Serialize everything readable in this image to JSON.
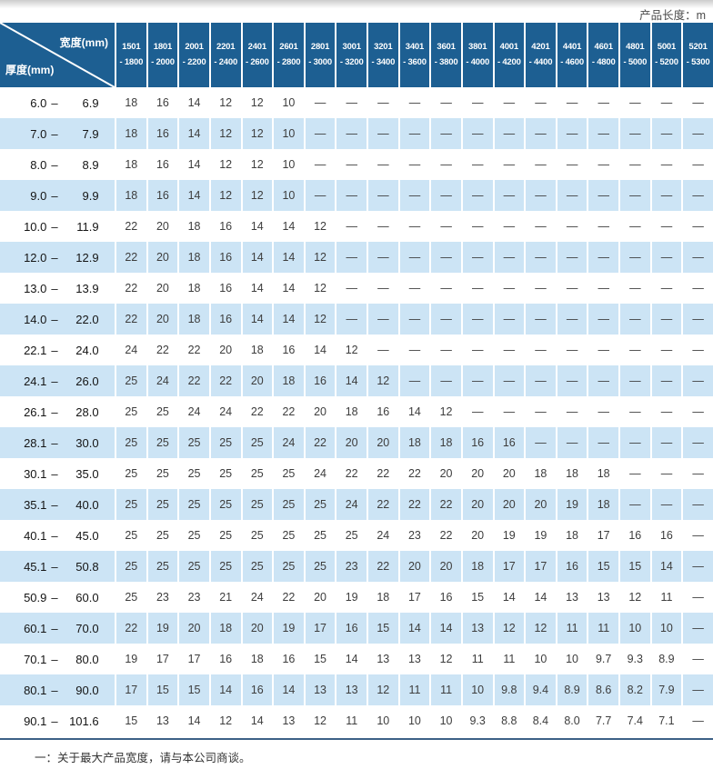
{
  "unit_note": "产品长度：m",
  "colors": {
    "header_blue": "#1d5f92",
    "row_alt_blue": "#cce4f5",
    "rule_color": "#3d6186"
  },
  "table": {
    "corner": {
      "width_label": "宽度(mm)",
      "thickness_label": "厚度(mm)"
    },
    "width_columns": [
      [
        "1501",
        "- 1800"
      ],
      [
        "1801",
        "- 2000"
      ],
      [
        "2001",
        "- 2200"
      ],
      [
        "2201",
        "- 2400"
      ],
      [
        "2401",
        "- 2600"
      ],
      [
        "2601",
        "- 2800"
      ],
      [
        "2801",
        "- 3000"
      ],
      [
        "3001",
        "- 3200"
      ],
      [
        "3201",
        "- 3400"
      ],
      [
        "3401",
        "- 3600"
      ],
      [
        "3601",
        "- 3800"
      ],
      [
        "3801",
        "- 4000"
      ],
      [
        "4001",
        "- 4200"
      ],
      [
        "4201",
        "- 4400"
      ],
      [
        "4401",
        "- 4600"
      ],
      [
        "4601",
        "- 4800"
      ],
      [
        "4801",
        "- 5000"
      ],
      [
        "5001",
        "- 5200"
      ],
      [
        "5201",
        "- 5300"
      ]
    ],
    "rows": [
      {
        "range": [
          "6.0",
          "6.9"
        ],
        "values": [
          "18",
          "16",
          "14",
          "12",
          "12",
          "10",
          "—",
          "—",
          "—",
          "—",
          "—",
          "—",
          "—",
          "—",
          "—",
          "—",
          "—",
          "—",
          "—"
        ]
      },
      {
        "range": [
          "7.0",
          "7.9"
        ],
        "values": [
          "18",
          "16",
          "14",
          "12",
          "12",
          "10",
          "—",
          "—",
          "—",
          "—",
          "—",
          "—",
          "—",
          "—",
          "—",
          "—",
          "—",
          "—",
          "—"
        ]
      },
      {
        "range": [
          "8.0",
          "8.9"
        ],
        "values": [
          "18",
          "16",
          "14",
          "12",
          "12",
          "10",
          "—",
          "—",
          "—",
          "—",
          "—",
          "—",
          "—",
          "—",
          "—",
          "—",
          "—",
          "—",
          "—"
        ]
      },
      {
        "range": [
          "9.0",
          "9.9"
        ],
        "values": [
          "18",
          "16",
          "14",
          "12",
          "12",
          "10",
          "—",
          "—",
          "—",
          "—",
          "—",
          "—",
          "—",
          "—",
          "—",
          "—",
          "—",
          "—",
          "—"
        ]
      },
      {
        "range": [
          "10.0",
          "11.9"
        ],
        "values": [
          "22",
          "20",
          "18",
          "16",
          "14",
          "14",
          "12",
          "—",
          "—",
          "—",
          "—",
          "—",
          "—",
          "—",
          "—",
          "—",
          "—",
          "—",
          "—"
        ]
      },
      {
        "range": [
          "12.0",
          "12.9"
        ],
        "values": [
          "22",
          "20",
          "18",
          "16",
          "14",
          "14",
          "12",
          "—",
          "—",
          "—",
          "—",
          "—",
          "—",
          "—",
          "—",
          "—",
          "—",
          "—",
          "—"
        ]
      },
      {
        "range": [
          "13.0",
          "13.9"
        ],
        "values": [
          "22",
          "20",
          "18",
          "16",
          "14",
          "14",
          "12",
          "—",
          "—",
          "—",
          "—",
          "—",
          "—",
          "—",
          "—",
          "—",
          "—",
          "—",
          "—"
        ]
      },
      {
        "range": [
          "14.0",
          "22.0"
        ],
        "values": [
          "22",
          "20",
          "18",
          "16",
          "14",
          "14",
          "12",
          "—",
          "—",
          "—",
          "—",
          "—",
          "—",
          "—",
          "—",
          "—",
          "—",
          "—",
          "—"
        ]
      },
      {
        "range": [
          "22.1",
          "24.0"
        ],
        "values": [
          "24",
          "22",
          "22",
          "20",
          "18",
          "16",
          "14",
          "12",
          "—",
          "—",
          "—",
          "—",
          "—",
          "—",
          "—",
          "—",
          "—",
          "—",
          "—"
        ]
      },
      {
        "range": [
          "24.1",
          "26.0"
        ],
        "values": [
          "25",
          "24",
          "22",
          "22",
          "20",
          "18",
          "16",
          "14",
          "12",
          "—",
          "—",
          "—",
          "—",
          "—",
          "—",
          "—",
          "—",
          "—",
          "—"
        ]
      },
      {
        "range": [
          "26.1",
          "28.0"
        ],
        "values": [
          "25",
          "25",
          "24",
          "24",
          "22",
          "22",
          "20",
          "18",
          "16",
          "14",
          "12",
          "—",
          "—",
          "—",
          "—",
          "—",
          "—",
          "—",
          "—"
        ]
      },
      {
        "range": [
          "28.1",
          "30.0"
        ],
        "values": [
          "25",
          "25",
          "25",
          "25",
          "25",
          "24",
          "22",
          "20",
          "20",
          "18",
          "18",
          "16",
          "16",
          "—",
          "—",
          "—",
          "—",
          "—",
          "—"
        ]
      },
      {
        "range": [
          "30.1",
          "35.0"
        ],
        "values": [
          "25",
          "25",
          "25",
          "25",
          "25",
          "25",
          "24",
          "22",
          "22",
          "22",
          "20",
          "20",
          "20",
          "18",
          "18",
          "18",
          "—",
          "—",
          "—"
        ]
      },
      {
        "range": [
          "35.1",
          "40.0"
        ],
        "values": [
          "25",
          "25",
          "25",
          "25",
          "25",
          "25",
          "25",
          "24",
          "22",
          "22",
          "22",
          "20",
          "20",
          "20",
          "19",
          "18",
          "—",
          "—",
          "—"
        ]
      },
      {
        "range": [
          "40.1",
          "45.0"
        ],
        "values": [
          "25",
          "25",
          "25",
          "25",
          "25",
          "25",
          "25",
          "25",
          "24",
          "23",
          "22",
          "20",
          "19",
          "19",
          "18",
          "17",
          "16",
          "16",
          "—"
        ]
      },
      {
        "range": [
          "45.1",
          "50.8"
        ],
        "values": [
          "25",
          "25",
          "25",
          "25",
          "25",
          "25",
          "25",
          "23",
          "22",
          "20",
          "20",
          "18",
          "17",
          "17",
          "16",
          "15",
          "15",
          "14",
          "—"
        ]
      },
      {
        "range": [
          "50.9",
          "60.0"
        ],
        "values": [
          "25",
          "23",
          "23",
          "21",
          "24",
          "22",
          "20",
          "19",
          "18",
          "17",
          "16",
          "15",
          "14",
          "14",
          "13",
          "13",
          "12",
          "11",
          "—"
        ]
      },
      {
        "range": [
          "60.1",
          "70.0"
        ],
        "values": [
          "22",
          "19",
          "20",
          "18",
          "20",
          "19",
          "17",
          "16",
          "15",
          "14",
          "14",
          "13",
          "12",
          "12",
          "11",
          "11",
          "10",
          "10",
          "—"
        ]
      },
      {
        "range": [
          "70.1",
          "80.0"
        ],
        "values": [
          "19",
          "17",
          "17",
          "16",
          "18",
          "16",
          "15",
          "14",
          "13",
          "13",
          "12",
          "11",
          "11",
          "10",
          "10",
          "9.7",
          "9.3",
          "8.9",
          "—"
        ]
      },
      {
        "range": [
          "80.1",
          "90.0"
        ],
        "values": [
          "17",
          "15",
          "15",
          "14",
          "16",
          "14",
          "13",
          "13",
          "12",
          "11",
          "11",
          "10",
          "9.8",
          "9.4",
          "8.9",
          "8.6",
          "8.2",
          "7.9",
          "—"
        ]
      },
      {
        "range": [
          "90.1",
          "101.6"
        ],
        "values": [
          "15",
          "13",
          "14",
          "12",
          "14",
          "13",
          "12",
          "11",
          "10",
          "10",
          "10",
          "9.3",
          "8.8",
          "8.4",
          "8.0",
          "7.7",
          "7.4",
          "7.1",
          "—"
        ]
      }
    ]
  },
  "footnote": "一：关于最大产品宽度，请与本公司商谈。"
}
